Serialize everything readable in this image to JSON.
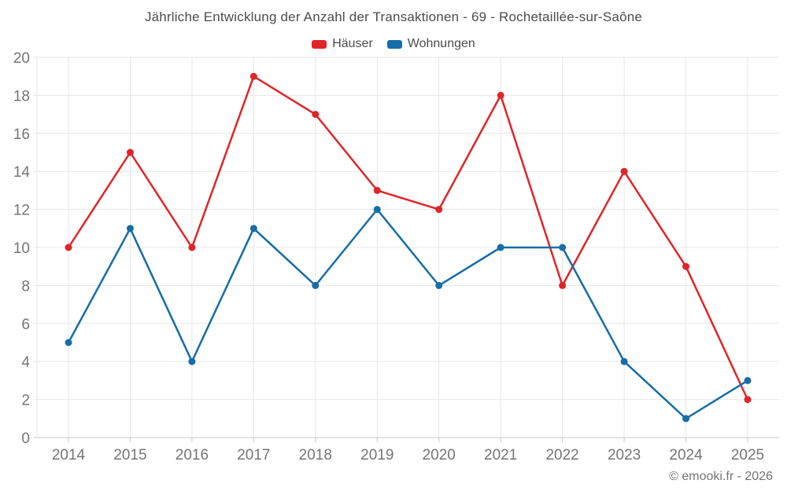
{
  "title": "Jährliche Entwicklung der Anzahl der Transaktionen - 69 - Rochetaillée-sur-Saône",
  "footer_credit": "© emooki.fr - 2026",
  "colors": {
    "hauser": "#e02529",
    "wohnungen": "#166da8",
    "grid": "#e7e7e7",
    "axis_line": "#c9c9c9",
    "tick_label": "#757575",
    "title_text": "#4d4d4d",
    "background": "#ffffff"
  },
  "legend": {
    "items": [
      {
        "label": "Häuser",
        "color": "#e02529"
      },
      {
        "label": "Wohnungen",
        "color": "#166da8"
      }
    ]
  },
  "chart_data": {
    "type": "line",
    "title": "Jährliche Entwicklung der Anzahl der Transaktionen - 69 - Rochetaillée-sur-Saône",
    "categories": [
      "2014",
      "2015",
      "2016",
      "2017",
      "2018",
      "2019",
      "2020",
      "2021",
      "2022",
      "2023",
      "2024",
      "2025"
    ],
    "series": [
      {
        "name": "Häuser",
        "color": "#e02529",
        "values": [
          10,
          15,
          10,
          19,
          17,
          13,
          12,
          18,
          8,
          14,
          9,
          2
        ]
      },
      {
        "name": "Wohnungen",
        "color": "#166da8",
        "values": [
          5,
          11,
          4,
          11,
          8,
          12,
          8,
          10,
          10,
          4,
          1,
          3
        ]
      }
    ],
    "xlabel": "",
    "ylabel": "",
    "ylim": [
      0,
      20
    ],
    "ytick_step": 2,
    "grid": true,
    "legend_position": "top"
  }
}
